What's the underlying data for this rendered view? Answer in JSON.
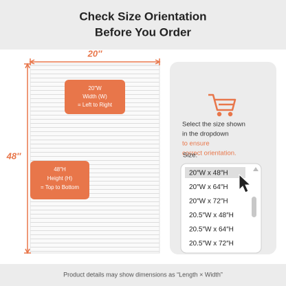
{
  "header": {
    "title": [
      "Check Size Orientation",
      "Before You Order"
    ]
  },
  "dimensions": {
    "width": "20″",
    "height": "48″"
  },
  "callouts": {
    "width": [
      "20″W",
      "Width (W)",
      "= Left to Right"
    ],
    "height": [
      "48″H",
      "Height (H)",
      "= Top to Bottom"
    ]
  },
  "panel": {
    "instruction": [
      "Select the size shown",
      "in the dropdown"
    ],
    "highlight": [
      "to ensure",
      "correct orientation."
    ],
    "dropdown_label": "Size:",
    "options": [
      "20″W x 48″H",
      "20″W x 64″H",
      "20″W x 72″H",
      "20.5″W x 48″H",
      "20.5″W x 64″H",
      "20.5″W x 72″H"
    ]
  },
  "footer": "Product details may show dimensions as “Length × Width”"
}
